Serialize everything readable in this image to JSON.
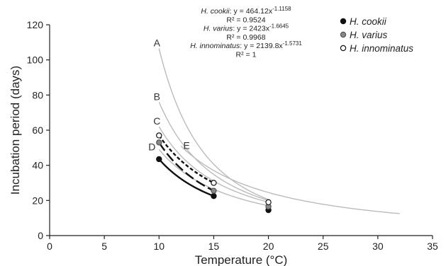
{
  "chart_data": {
    "type": "line",
    "xlabel": "Temperature (°C)",
    "ylabel": "Incubation period (days)",
    "xlim": [
      0,
      35
    ],
    "ylim": [
      0,
      120
    ],
    "xticks": [
      0,
      5,
      10,
      15,
      20,
      25,
      30,
      35
    ],
    "yticks": [
      0,
      20,
      40,
      60,
      80,
      100,
      120
    ],
    "grid": false,
    "legend_position": "top-right",
    "series": [
      {
        "name": "H. cookii",
        "marker": "filled-black",
        "line": "solid",
        "color": "#111111",
        "x": [
          10,
          15,
          20
        ],
        "y": [
          43.5,
          22.5,
          14.5
        ]
      },
      {
        "name": "H. varius",
        "marker": "filled-grey",
        "line": "long-dash",
        "color": "#111111",
        "x": [
          10,
          15,
          20
        ],
        "y": [
          53,
          25.5,
          16.5
        ]
      },
      {
        "name": "H. innominatus",
        "marker": "open-circle",
        "line": "short-dash",
        "color": "#111111",
        "x": [
          10,
          15,
          20
        ],
        "y": [
          57,
          30,
          19
        ]
      }
    ],
    "reference_curves": [
      {
        "label": "A",
        "color": "#bbbbbb",
        "x": [
          10,
          20
        ],
        "y": [
          106.5,
          20.5
        ]
      },
      {
        "label": "B",
        "color": "#bbbbbb",
        "x": [
          10,
          20
        ],
        "y": [
          76,
          20
        ]
      },
      {
        "label": "C",
        "color": "#bbbbbb",
        "x": [
          10,
          20
        ],
        "y": [
          62,
          19
        ]
      },
      {
        "label": "D",
        "color": "#bbbbbb",
        "x": [
          10,
          20
        ],
        "y": [
          49,
          17
        ]
      },
      {
        "label": "E",
        "color": "#bbbbbb",
        "x": [
          12,
          32
        ],
        "y": [
          51,
          12.5
        ]
      }
    ],
    "equations": [
      {
        "species": "H. cookii",
        "formula": "y = 464.12x",
        "exponent": "-1.1158"
      },
      {
        "species": "",
        "formula": "R² = 0.9524",
        "exponent": ""
      },
      {
        "species": "H. varius",
        "formula": "y = 2423x",
        "exponent": "-1.6645"
      },
      {
        "species": "",
        "formula": "R² = 0.9968",
        "exponent": ""
      },
      {
        "species": "H. innominatus",
        "formula": "y = 2139.8x",
        "exponent": "-1.5731"
      },
      {
        "species": "",
        "formula": "R² = 1",
        "exponent": ""
      }
    ]
  }
}
